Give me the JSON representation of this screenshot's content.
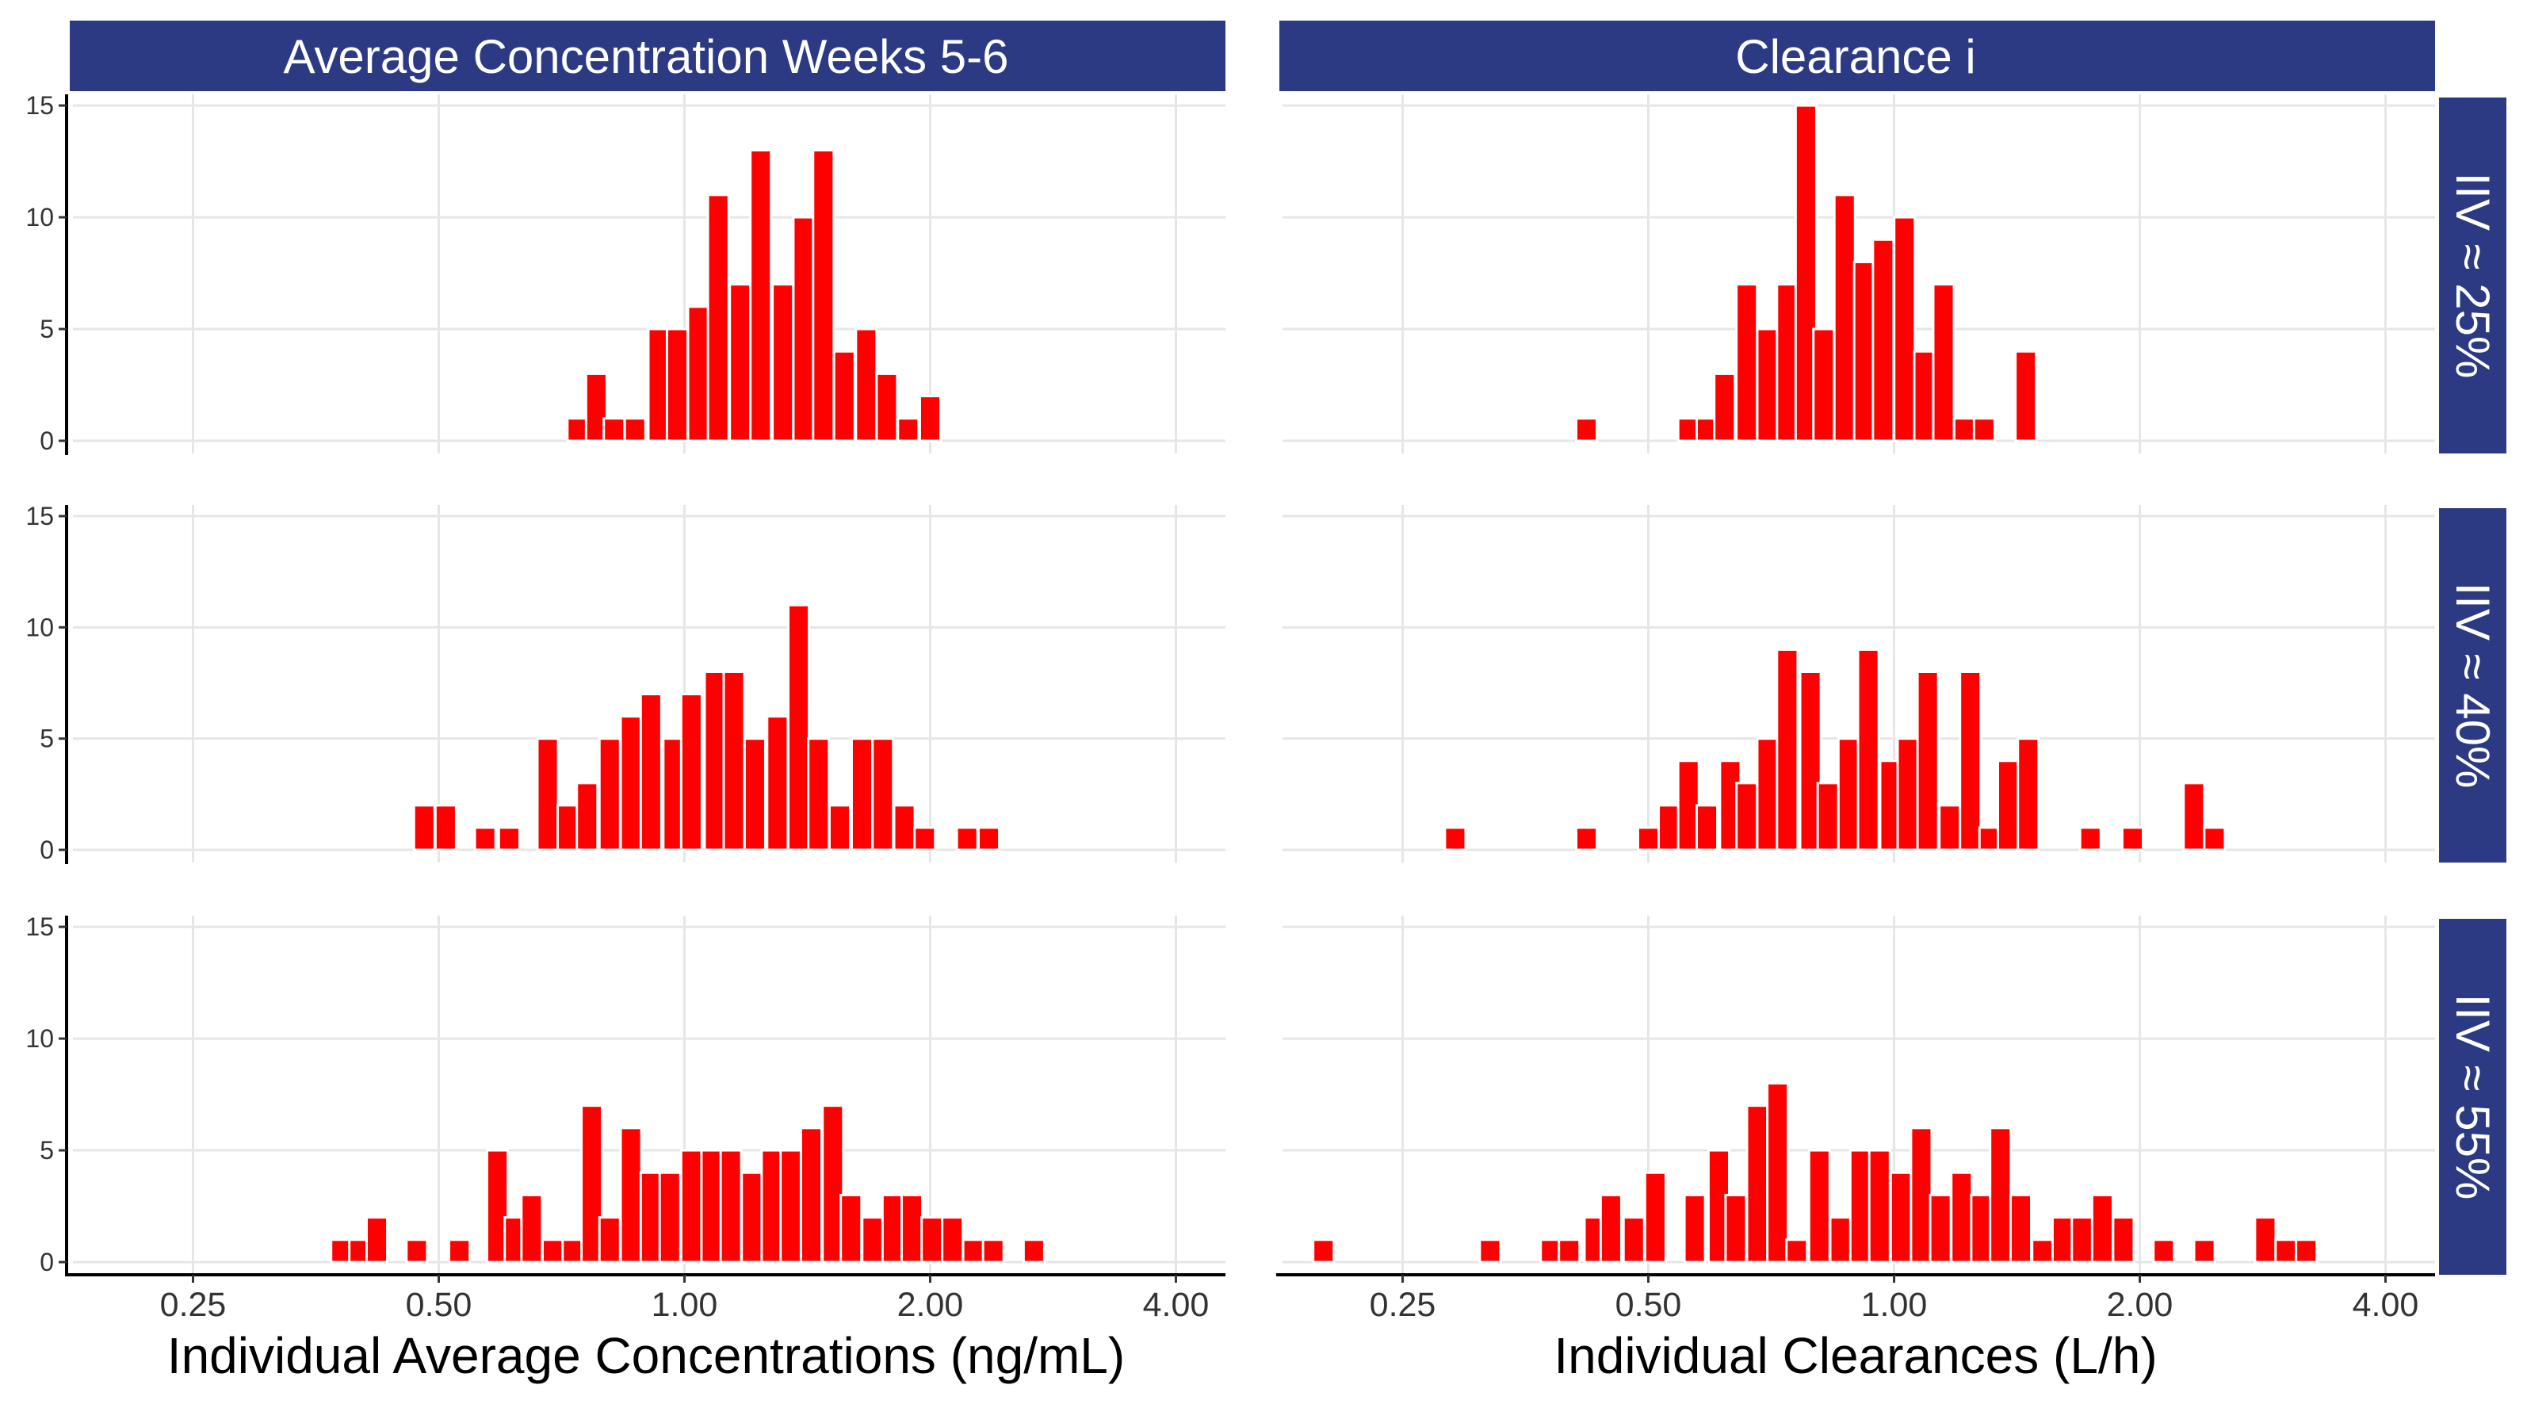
{
  "colors": {
    "bar": "#ff0000",
    "bar_outline": "#ffffff",
    "strip_fill": "#2b3a82",
    "strip_text": "#ffffff",
    "grid": "#e6e6e6",
    "axis_line": "#000000",
    "tick_label": "#333333"
  },
  "chart_data": {
    "type": "bar",
    "title": "",
    "facet_columns": [
      "Average Concentration Weeks 5-6",
      "Clearance i"
    ],
    "facet_rows": [
      "IIV ≈ 25%",
      "IIV ≈ 40%",
      "IIV ≈ 55%"
    ],
    "xlabels": [
      "Individual Average Concentrations (ng/mL)",
      "Individual Clearances (L/h)"
    ],
    "x_scale": "log",
    "x_ticks": [
      "0.25",
      "0.50",
      "1.00",
      "2.00",
      "4.00"
    ],
    "y_ticks": [
      "0",
      "5",
      "10",
      "15"
    ],
    "ylim": [
      0,
      15.5
    ],
    "grid": true,
    "panels": [
      {
        "col": 0,
        "row": 0,
        "bars": [
          {
            "x": 0.74,
            "y": 1
          },
          {
            "x": 0.78,
            "y": 3
          },
          {
            "x": 0.82,
            "y": 1
          },
          {
            "x": 0.87,
            "y": 1
          },
          {
            "x": 0.93,
            "y": 5
          },
          {
            "x": 0.98,
            "y": 5
          },
          {
            "x": 1.04,
            "y": 6
          },
          {
            "x": 1.1,
            "y": 11
          },
          {
            "x": 1.17,
            "y": 7
          },
          {
            "x": 1.24,
            "y": 13
          },
          {
            "x": 1.32,
            "y": 7
          },
          {
            "x": 1.4,
            "y": 10
          },
          {
            "x": 1.48,
            "y": 13
          },
          {
            "x": 1.57,
            "y": 4
          },
          {
            "x": 1.67,
            "y": 5
          },
          {
            "x": 1.77,
            "y": 3
          },
          {
            "x": 1.88,
            "y": 1
          },
          {
            "x": 2.0,
            "y": 2
          }
        ]
      },
      {
        "col": 1,
        "row": 0,
        "bars": [
          {
            "x": 0.42,
            "y": 1
          },
          {
            "x": 0.56,
            "y": 1
          },
          {
            "x": 0.59,
            "y": 1
          },
          {
            "x": 0.62,
            "y": 3
          },
          {
            "x": 0.66,
            "y": 7
          },
          {
            "x": 0.7,
            "y": 5
          },
          {
            "x": 0.74,
            "y": 7
          },
          {
            "x": 0.78,
            "y": 15
          },
          {
            "x": 0.82,
            "y": 5
          },
          {
            "x": 0.87,
            "y": 11
          },
          {
            "x": 0.92,
            "y": 8
          },
          {
            "x": 0.97,
            "y": 9
          },
          {
            "x": 1.03,
            "y": 10
          },
          {
            "x": 1.09,
            "y": 4
          },
          {
            "x": 1.15,
            "y": 7
          },
          {
            "x": 1.22,
            "y": 1
          },
          {
            "x": 1.29,
            "y": 1
          },
          {
            "x": 1.45,
            "y": 4
          }
        ]
      },
      {
        "col": 0,
        "row": 1,
        "bars": [
          {
            "x": 0.48,
            "y": 2
          },
          {
            "x": 0.51,
            "y": 2
          },
          {
            "x": 0.57,
            "y": 1
          },
          {
            "x": 0.61,
            "y": 1
          },
          {
            "x": 0.68,
            "y": 5
          },
          {
            "x": 0.72,
            "y": 2
          },
          {
            "x": 0.76,
            "y": 3
          },
          {
            "x": 0.81,
            "y": 5
          },
          {
            "x": 0.86,
            "y": 6
          },
          {
            "x": 0.91,
            "y": 7
          },
          {
            "x": 0.97,
            "y": 5
          },
          {
            "x": 1.02,
            "y": 7
          },
          {
            "x": 1.09,
            "y": 8
          },
          {
            "x": 1.15,
            "y": 8
          },
          {
            "x": 1.22,
            "y": 5
          },
          {
            "x": 1.3,
            "y": 6
          },
          {
            "x": 1.38,
            "y": 11
          },
          {
            "x": 1.46,
            "y": 5
          },
          {
            "x": 1.55,
            "y": 2
          },
          {
            "x": 1.65,
            "y": 5
          },
          {
            "x": 1.75,
            "y": 5
          },
          {
            "x": 1.86,
            "y": 2
          },
          {
            "x": 1.97,
            "y": 1
          },
          {
            "x": 2.22,
            "y": 1
          },
          {
            "x": 2.36,
            "y": 1
          }
        ]
      },
      {
        "col": 1,
        "row": 1,
        "bars": [
          {
            "x": 0.29,
            "y": 1
          },
          {
            "x": 0.42,
            "y": 1
          },
          {
            "x": 0.5,
            "y": 1
          },
          {
            "x": 0.53,
            "y": 2
          },
          {
            "x": 0.56,
            "y": 4
          },
          {
            "x": 0.59,
            "y": 2
          },
          {
            "x": 0.63,
            "y": 4
          },
          {
            "x": 0.66,
            "y": 3
          },
          {
            "x": 0.7,
            "y": 5
          },
          {
            "x": 0.74,
            "y": 9
          },
          {
            "x": 0.79,
            "y": 8
          },
          {
            "x": 0.83,
            "y": 3
          },
          {
            "x": 0.88,
            "y": 5
          },
          {
            "x": 0.93,
            "y": 9
          },
          {
            "x": 0.99,
            "y": 4
          },
          {
            "x": 1.04,
            "y": 5
          },
          {
            "x": 1.1,
            "y": 8
          },
          {
            "x": 1.17,
            "y": 2
          },
          {
            "x": 1.24,
            "y": 8
          },
          {
            "x": 1.31,
            "y": 1
          },
          {
            "x": 1.38,
            "y": 4
          },
          {
            "x": 1.46,
            "y": 5
          },
          {
            "x": 1.74,
            "y": 1
          },
          {
            "x": 1.96,
            "y": 1
          },
          {
            "x": 2.33,
            "y": 3
          },
          {
            "x": 2.47,
            "y": 1
          }
        ]
      },
      {
        "col": 0,
        "row": 2,
        "bars": [
          {
            "x": 0.38,
            "y": 1
          },
          {
            "x": 0.4,
            "y": 1
          },
          {
            "x": 0.42,
            "y": 2
          },
          {
            "x": 0.47,
            "y": 1
          },
          {
            "x": 0.53,
            "y": 1
          },
          {
            "x": 0.59,
            "y": 5
          },
          {
            "x": 0.62,
            "y": 2
          },
          {
            "x": 0.65,
            "y": 3
          },
          {
            "x": 0.69,
            "y": 1
          },
          {
            "x": 0.73,
            "y": 1
          },
          {
            "x": 0.77,
            "y": 7
          },
          {
            "x": 0.81,
            "y": 2
          },
          {
            "x": 0.86,
            "y": 6
          },
          {
            "x": 0.91,
            "y": 4
          },
          {
            "x": 0.96,
            "y": 4
          },
          {
            "x": 1.02,
            "y": 5
          },
          {
            "x": 1.08,
            "y": 5
          },
          {
            "x": 1.14,
            "y": 5
          },
          {
            "x": 1.21,
            "y": 4
          },
          {
            "x": 1.28,
            "y": 5
          },
          {
            "x": 1.35,
            "y": 5
          },
          {
            "x": 1.43,
            "y": 6
          },
          {
            "x": 1.52,
            "y": 7
          },
          {
            "x": 1.6,
            "y": 3
          },
          {
            "x": 1.7,
            "y": 2
          },
          {
            "x": 1.8,
            "y": 3
          },
          {
            "x": 1.9,
            "y": 3
          },
          {
            "x": 2.01,
            "y": 2
          },
          {
            "x": 2.13,
            "y": 2
          },
          {
            "x": 2.26,
            "y": 1
          },
          {
            "x": 2.39,
            "y": 1
          },
          {
            "x": 2.68,
            "y": 1
          }
        ]
      },
      {
        "col": 1,
        "row": 2,
        "bars": [
          {
            "x": 0.2,
            "y": 1
          },
          {
            "x": 0.32,
            "y": 1
          },
          {
            "x": 0.38,
            "y": 1
          },
          {
            "x": 0.4,
            "y": 1
          },
          {
            "x": 0.43,
            "y": 2
          },
          {
            "x": 0.45,
            "y": 3
          },
          {
            "x": 0.48,
            "y": 2
          },
          {
            "x": 0.51,
            "y": 4
          },
          {
            "x": 0.57,
            "y": 3
          },
          {
            "x": 0.61,
            "y": 5
          },
          {
            "x": 0.64,
            "y": 3
          },
          {
            "x": 0.68,
            "y": 7
          },
          {
            "x": 0.72,
            "y": 8
          },
          {
            "x": 0.76,
            "y": 1
          },
          {
            "x": 0.81,
            "y": 5
          },
          {
            "x": 0.86,
            "y": 2
          },
          {
            "x": 0.91,
            "y": 5
          },
          {
            "x": 0.96,
            "y": 5
          },
          {
            "x": 1.02,
            "y": 4
          },
          {
            "x": 1.08,
            "y": 6
          },
          {
            "x": 1.14,
            "y": 3
          },
          {
            "x": 1.21,
            "y": 4
          },
          {
            "x": 1.28,
            "y": 3
          },
          {
            "x": 1.35,
            "y": 6
          },
          {
            "x": 1.43,
            "y": 3
          },
          {
            "x": 1.52,
            "y": 1
          },
          {
            "x": 1.61,
            "y": 2
          },
          {
            "x": 1.7,
            "y": 2
          },
          {
            "x": 1.8,
            "y": 3
          },
          {
            "x": 1.91,
            "y": 2
          },
          {
            "x": 2.14,
            "y": 1
          },
          {
            "x": 2.4,
            "y": 1
          },
          {
            "x": 2.85,
            "y": 2
          },
          {
            "x": 3.02,
            "y": 1
          },
          {
            "x": 3.2,
            "y": 1
          }
        ]
      }
    ]
  }
}
